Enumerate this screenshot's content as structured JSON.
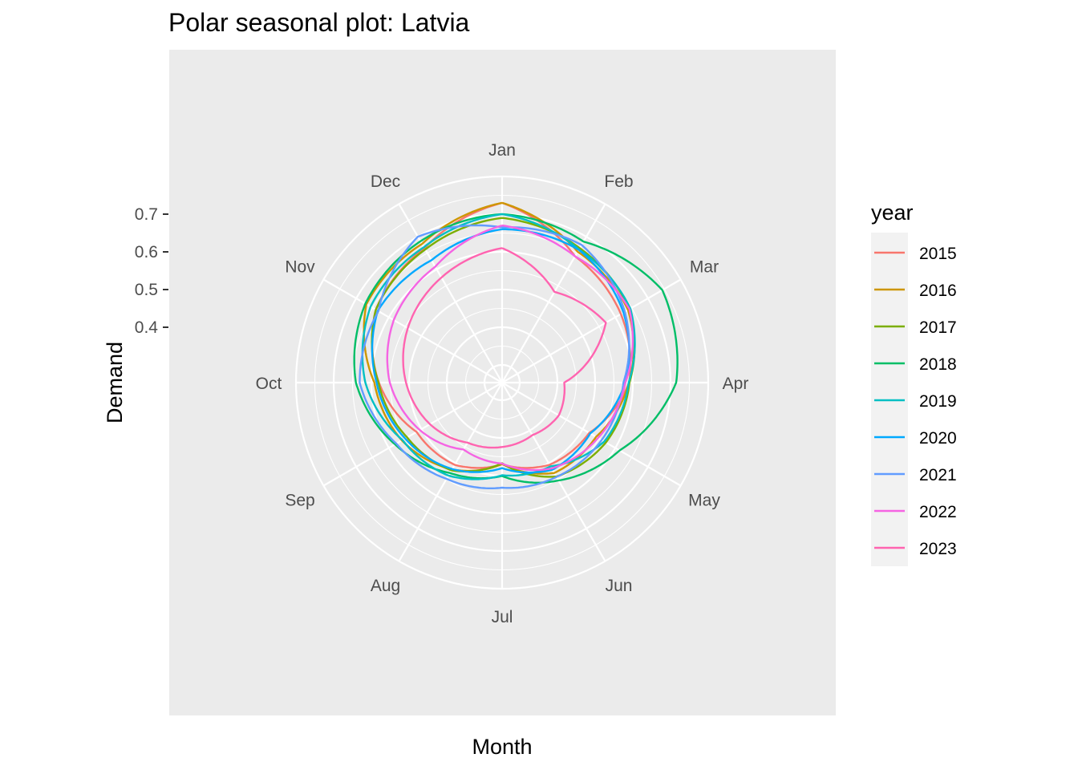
{
  "chart_data": {
    "type": "line",
    "coord": "polar",
    "title": "Polar seasonal plot: Latvia",
    "xlabel": "Month",
    "ylabel": "Demand",
    "months": [
      "Jan",
      "Feb",
      "Mar",
      "Apr",
      "May",
      "Jun",
      "Jul",
      "Aug",
      "Sep",
      "Oct",
      "Nov",
      "Dec"
    ],
    "y_ticks": [
      0.4,
      0.5,
      0.6,
      0.7
    ],
    "ylim": [
      0.3,
      0.8
    ],
    "grid": true,
    "legend": {
      "title": "year",
      "position": "right"
    },
    "series": [
      {
        "name": "2015",
        "color": "#F8766D",
        "values": [
          0.73,
          0.64,
          0.617,
          0.59,
          0.52,
          0.505,
          0.47,
          0.505,
          0.515,
          0.58,
          0.64,
          0.665
        ],
        "end_month": 6.7,
        "end_value": 0.456
      },
      {
        "name": "2016",
        "color": "#CD9600",
        "values": [
          0.73,
          0.654,
          0.639,
          0.59,
          0.541,
          0.53,
          0.469,
          0.519,
          0.56,
          0.592,
          0.669,
          0.678
        ],
        "end_month": 3.6,
        "end_value": 0.37
      },
      {
        "name": "2017",
        "color": "#7CAE00",
        "values": [
          0.69,
          0.665,
          0.643,
          0.591,
          0.571,
          0.541,
          0.467,
          0.522,
          0.544,
          0.581,
          0.64,
          0.661
        ],
        "end_month": 4.6,
        "end_value": 0.43
      },
      {
        "name": "2018",
        "color": "#00BE67",
        "values": [
          0.7,
          0.685,
          0.744,
          0.715,
          0.613,
          0.553,
          0.501,
          0.53,
          0.581,
          0.641,
          0.672,
          0.686
        ],
        "end_month": 4.2,
        "end_value": 0.4
      },
      {
        "name": "2019",
        "color": "#00BFC4",
        "values": [
          0.7,
          0.661,
          0.646,
          0.589,
          0.566,
          0.51,
          0.499,
          0.538,
          0.558,
          0.616,
          0.656,
          0.668
        ],
        "end_month": 4.7,
        "end_value": 0.43
      },
      {
        "name": "2020",
        "color": "#00A9FF",
        "values": [
          0.66,
          0.66,
          0.625,
          0.58,
          0.523,
          0.52,
          0.48,
          0.518,
          0.55,
          0.586,
          0.634,
          0.628
        ],
        "end_month": 4.6,
        "end_value": 0.42
      },
      {
        "name": "2021",
        "color": "#619CFF",
        "values": [
          0.665,
          0.675,
          0.629,
          0.575,
          0.558,
          0.542,
          0.532,
          0.548,
          0.577,
          0.631,
          0.632,
          0.7
        ],
        "end_month": 5.7,
        "end_value": 0.44
      },
      {
        "name": "2022",
        "color": "#F564E3",
        "values": [
          0.67,
          0.64,
          0.643,
          0.58,
          0.547,
          0.516,
          0.468,
          0.458,
          0.505,
          0.551,
          0.585,
          0.608
        ],
        "end_month": 5.0,
        "end_value": 0.4
      },
      {
        "name": "2023",
        "color": "#FF64B0",
        "values": [
          0.61,
          0.531,
          0.571,
          0.418,
          0.427,
          0.414,
          0.424,
          0.437,
          0.474,
          0.508,
          0.542,
          0.575
        ],
        "end_month": 10.3,
        "end_value": 0.46
      }
    ]
  }
}
